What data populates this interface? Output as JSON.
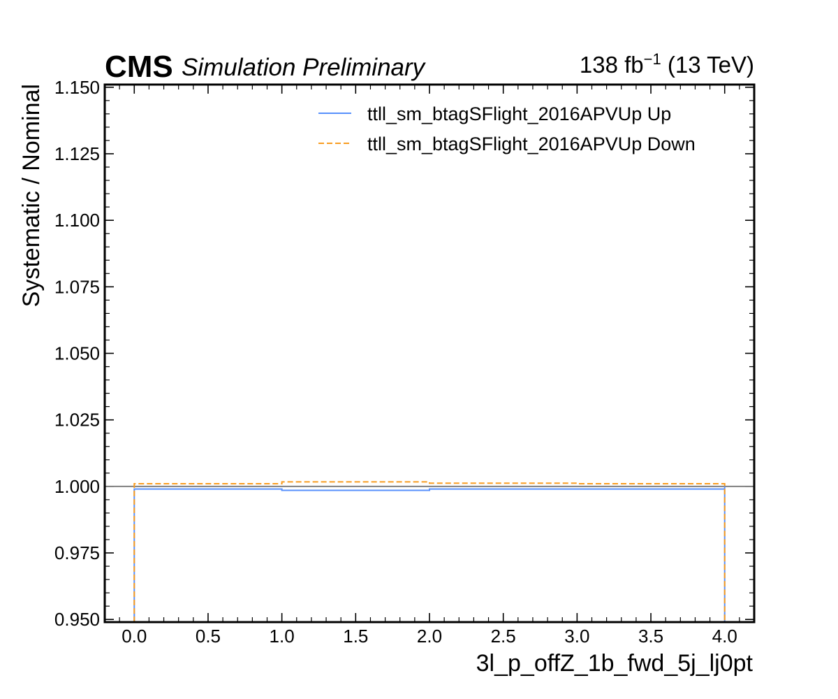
{
  "header": {
    "experiment": "CMS",
    "status": "Simulation Preliminary",
    "lumi_prefix": "138 fb",
    "lumi_exponent": "−1",
    "lumi_suffix": " (13 TeV)"
  },
  "chart_data": {
    "type": "line",
    "drawstyle": "step",
    "xlabel": "3l_p_offZ_1b_fwd_5j_lj0pt",
    "ylabel": "Systematic / Nominal",
    "xlim": [
      -0.2,
      4.2
    ],
    "ylim": [
      0.949,
      1.151
    ],
    "xticks": [
      "0.0",
      "0.5",
      "1.0",
      "1.5",
      "2.0",
      "2.5",
      "3.0",
      "3.5",
      "4.0"
    ],
    "yticks": [
      "0.950",
      "0.975",
      "1.000",
      "1.025",
      "1.050",
      "1.075",
      "1.100",
      "1.125",
      "1.150"
    ],
    "bin_edges": [
      0,
      1,
      2,
      3,
      4
    ],
    "reference_line": 1.0,
    "reference_color": "#808080",
    "legend_position": "top-right",
    "series": [
      {
        "name": "ttll_sm_btagSFlight_2016APVUp Up",
        "values": [
          0.999,
          0.9985,
          0.999,
          0.999
        ],
        "color": "#5790fc",
        "style": "solid"
      },
      {
        "name": "ttll_sm_btagSFlight_2016APVUp Down",
        "values": [
          1.001,
          1.0017,
          1.0012,
          1.001
        ],
        "color": "#f89c20",
        "style": "dashed"
      }
    ]
  }
}
